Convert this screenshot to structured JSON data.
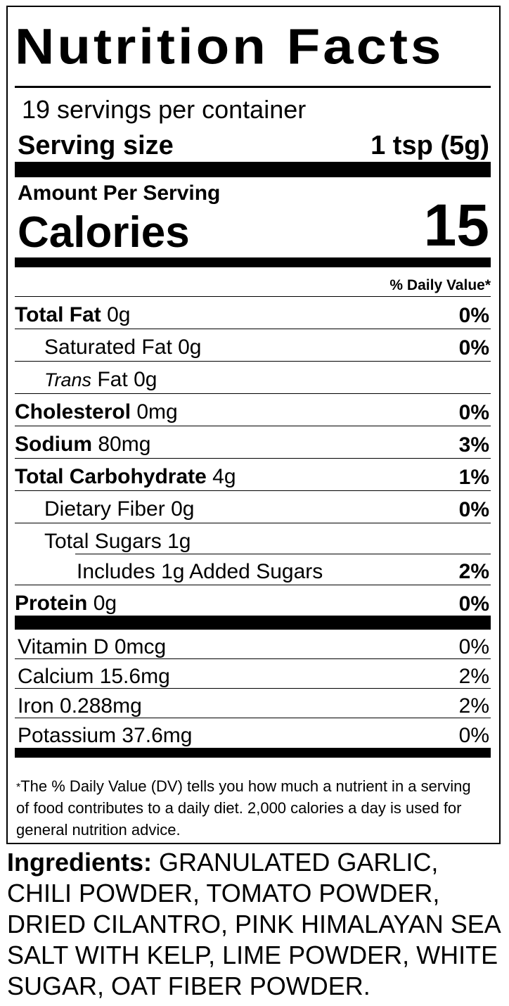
{
  "title": "Nutrition Facts",
  "servings_per_container": "19 servings per container",
  "serving_size": {
    "label": "Serving size",
    "value": "1 tsp (5g)"
  },
  "amount_per_serving": "Amount Per Serving",
  "calories": {
    "label": "Calories",
    "value": "15"
  },
  "daily_value_header": "% Daily Value*",
  "nutrients": [
    {
      "name": "Total Fat",
      "amount": "0g",
      "dv": "0%"
    },
    {
      "name": "Saturated Fat",
      "amount": "0g",
      "dv": "0%"
    },
    {
      "name_italic": "Trans",
      "name": "Fat",
      "amount": "0g",
      "dv": ""
    },
    {
      "name": "Cholesterol",
      "amount": "0mg",
      "dv": "0%"
    },
    {
      "name": "Sodium",
      "amount": "80mg",
      "dv": "3%"
    },
    {
      "name": "Total Carbohydrate",
      "amount": "4g",
      "dv": "1%"
    },
    {
      "name": "Dietary Fiber",
      "amount": "0g",
      "dv": "0%"
    },
    {
      "name": "Total Sugars",
      "amount": "1g",
      "dv": ""
    },
    {
      "name": "Includes 1g Added Sugars",
      "amount": "",
      "dv": "2%"
    },
    {
      "name": "Protein",
      "amount": "0g",
      "dv": "0%"
    }
  ],
  "vitamins": [
    {
      "text": "Vitamin D 0mcg",
      "dv": "0%"
    },
    {
      "text": "Calcium 15.6mg",
      "dv": "2%"
    },
    {
      "text": "Iron 0.288mg",
      "dv": "2%"
    },
    {
      "text": "Potassium 37.6mg",
      "dv": "0%"
    }
  ],
  "footnote": {
    "star": "*",
    "text": "The % Daily Value (DV) tells you how much a nutrient in a serving of food contributes to a daily diet. 2,000 calories a day is used for general nutrition advice."
  },
  "ingredients": {
    "label": "Ingredients:",
    "text": "GRANULATED GARLIC, CHILI POWDER, TOMATO POWDER, DRIED CILANTRO, PINK HIMALAYAN SEA SALT WITH KELP, LIME POWDER, WHITE SUGAR, OAT FIBER POWDER."
  }
}
